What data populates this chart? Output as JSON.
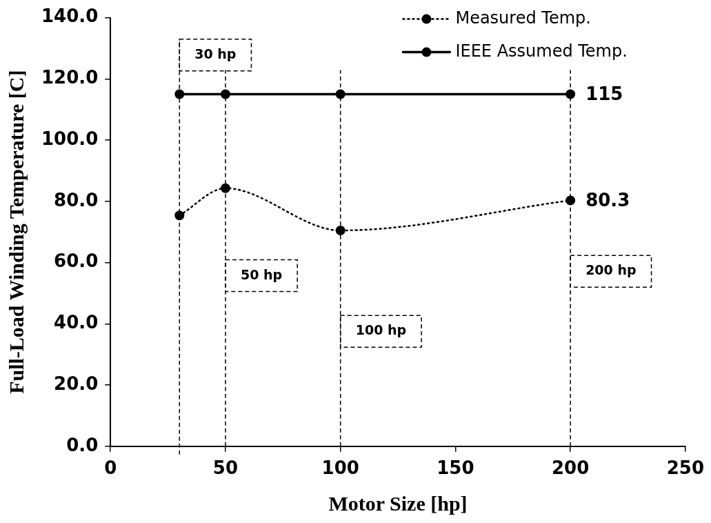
{
  "chart_data": {
    "type": "line",
    "xlabel": "Motor Size [hp]",
    "ylabel": "Full-Load Winding Temperature [C]",
    "xlim": [
      0,
      250
    ],
    "xticks": [
      0,
      50,
      100,
      150,
      200,
      250
    ],
    "ylim": [
      0,
      140
    ],
    "yticks": [
      {
        "value": 0,
        "label": "0.0"
      },
      {
        "value": 20,
        "label": "20.0"
      },
      {
        "value": 40,
        "label": "40.0"
      },
      {
        "value": 60,
        "label": "60.0"
      },
      {
        "value": 80,
        "label": "80.0"
      },
      {
        "value": 100,
        "label": "100.0"
      },
      {
        "value": 120,
        "label": "120.0"
      },
      {
        "value": 140,
        "label": "140.0"
      }
    ],
    "x": [
      30,
      50,
      100,
      200
    ],
    "series": [
      {
        "name": "Measured Temp.",
        "color": "#000000",
        "values": [
          75.4,
          84.3,
          70.5,
          80.3
        ],
        "line_style": "dotted",
        "marker": "circle",
        "value_labels": [
          null,
          null,
          null,
          "80.3"
        ]
      },
      {
        "name": "IEEE Assumed Temp.",
        "color": "#000000",
        "values": [
          115,
          115,
          115,
          115
        ],
        "line_style": "solid",
        "marker": "circle",
        "value_labels": [
          null,
          null,
          null,
          "115"
        ]
      }
    ],
    "ref_lines": [
      {
        "axis": "x",
        "value": 30,
        "label": "30 hp",
        "color": "#000000",
        "line_style": "dashed"
      },
      {
        "axis": "x",
        "value": 50,
        "label": "50 hp",
        "color": "#000000",
        "line_style": "dashed"
      },
      {
        "axis": "x",
        "value": 100,
        "label": "100 hp",
        "color": "#000000",
        "line_style": "dashed"
      },
      {
        "axis": "x",
        "value": 200,
        "label": "200 hp",
        "color": "#000000",
        "line_style": "dashed"
      }
    ],
    "grid": false,
    "legend": "top right"
  }
}
